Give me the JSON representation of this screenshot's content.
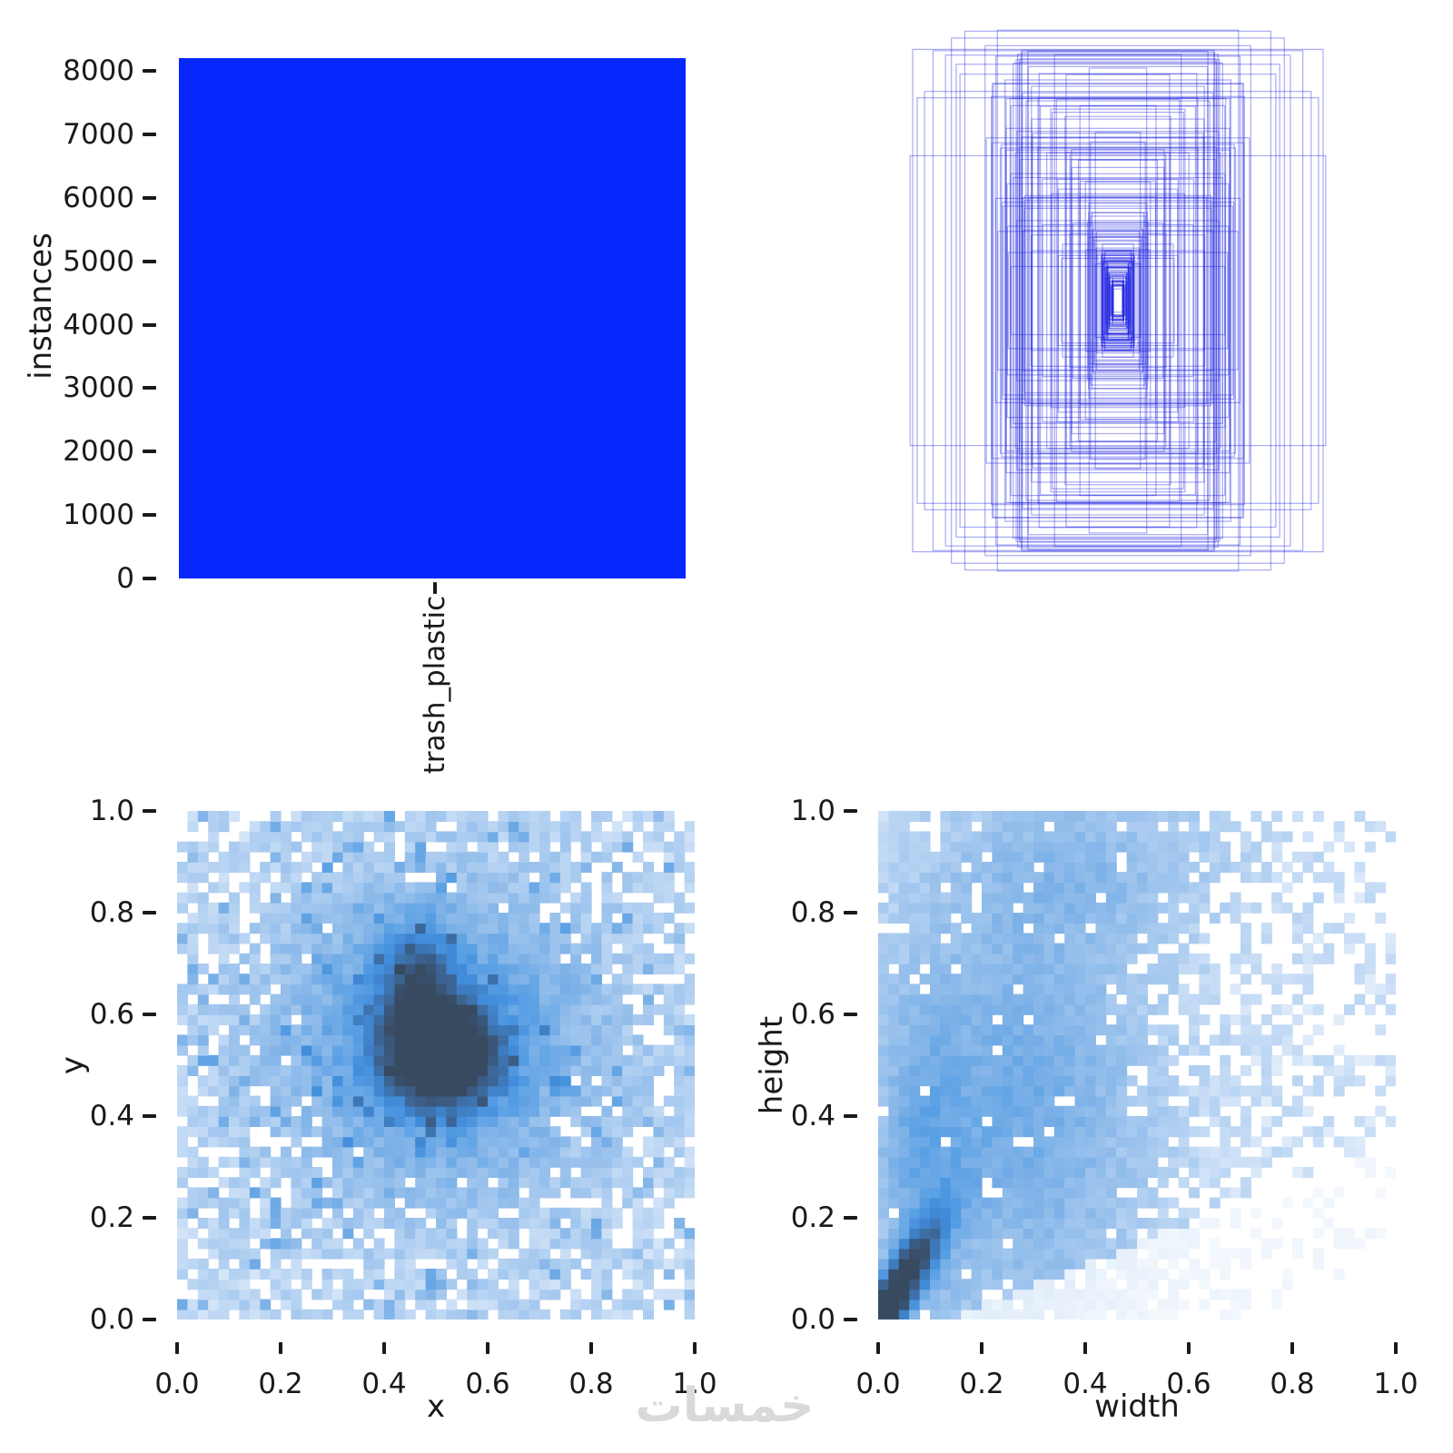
{
  "watermark": {
    "text": "خمسات",
    "color": "#d9d9d9"
  },
  "text_color": "#1a1a1a",
  "heat_colormap": [
    [
      0.0,
      "#ffffff"
    ],
    [
      0.1,
      "#c9def6"
    ],
    [
      0.22,
      "#a6c9ef"
    ],
    [
      0.35,
      "#82b4e8"
    ],
    [
      0.48,
      "#5aa0e4"
    ],
    [
      0.6,
      "#418cdb"
    ],
    [
      0.72,
      "#3d74b0"
    ],
    [
      0.84,
      "#3c5f8a"
    ],
    [
      1.0,
      "#374a60"
    ]
  ],
  "chart_data": [
    {
      "type": "bar",
      "panel": "class-instances",
      "title": "",
      "xlabel": "",
      "ylabel": "instances",
      "categories": [
        "trash_plastic"
      ],
      "values": [
        8200
      ],
      "ylim": [
        0,
        8540
      ],
      "yticks": [
        {
          "label": "0",
          "v": 0
        },
        {
          "label": "1000",
          "v": 1000
        },
        {
          "label": "2000",
          "v": 2000
        },
        {
          "label": "3000",
          "v": 3000
        },
        {
          "label": "4000",
          "v": 4000
        },
        {
          "label": "5000",
          "v": 5000
        },
        {
          "label": "6000",
          "v": 6000
        },
        {
          "label": "7000",
          "v": 7000
        },
        {
          "label": "8000",
          "v": 8000
        }
      ],
      "bar_color": "#0628ff",
      "grid": false,
      "legend": "none"
    },
    {
      "type": "bounding-box-overlay",
      "panel": "boxes",
      "description": "All dataset bounding boxes drawn as outlines, re-centered at (0.5, 0.5); many small boxes nest in the middle, a few span the whole field",
      "center": [
        0.5,
        0.5
      ],
      "n_rendered": 170,
      "seed": 7,
      "stroke": "#1a1fe0",
      "opacity": 0.38,
      "stroke_width": 1.2,
      "size_mix": {
        "small_frac": 0.52,
        "small_scale": 0.07,
        "mid_frac": 0.34,
        "mid_w": [
          0.1,
          0.6
        ],
        "mid_h": [
          0.12,
          0.92
        ],
        "large_w": [
          0.45,
          1.0
        ],
        "large_h": [
          0.5,
          1.0
        ]
      }
    },
    {
      "type": "heatmap",
      "panel": "xy-position",
      "xlabel": "x",
      "ylabel": "y",
      "xlim": [
        0,
        1
      ],
      "ylim": [
        0,
        1
      ],
      "bins": [
        50,
        50
      ],
      "xticks": [
        {
          "label": "0.0",
          "v": 0.0
        },
        {
          "label": "0.2",
          "v": 0.2
        },
        {
          "label": "0.4",
          "v": 0.4
        },
        {
          "label": "0.6",
          "v": 0.6
        },
        {
          "label": "0.8",
          "v": 0.8
        },
        {
          "label": "1.0",
          "v": 1.0
        }
      ],
      "yticks": [
        {
          "label": "0.0",
          "v": 0.0
        },
        {
          "label": "0.2",
          "v": 0.2
        },
        {
          "label": "0.4",
          "v": 0.4
        },
        {
          "label": "0.6",
          "v": 0.6
        },
        {
          "label": "0.8",
          "v": 0.8
        },
        {
          "label": "1.0",
          "v": 1.0
        }
      ],
      "peak": {
        "x": 0.51,
        "y": 0.52
      },
      "description": "2D histogram of box centers: near-uniform light-blue scatter over [0,1]^2 with a dark dense cluster at (0.51,0.52) and a secondary lobe toward (0.47,0.66)",
      "seed": 11,
      "density": {
        "base_min": 0.07,
        "base_rand": 0.15,
        "gaussians": [
          {
            "cx": 0.51,
            "cy": 0.52,
            "sx": 0.07,
            "sy": 0.065,
            "amp": 1.05
          },
          {
            "cx": 0.465,
            "cy": 0.655,
            "sx": 0.05,
            "sy": 0.08,
            "amp": 0.5
          },
          {
            "cx": 0.5,
            "cy": 0.55,
            "sx": 0.21,
            "sy": 0.2,
            "amp": 0.4
          }
        ],
        "bright_prob": 0.07,
        "bright_boost": 0.2,
        "zero_thresh": 0.26,
        "zero_prob": 0.24,
        "zero_edge_gain": 0.35
      },
      "grid": false
    },
    {
      "type": "heatmap",
      "panel": "width-height",
      "xlabel": "width",
      "ylabel": "height",
      "xlim": [
        0,
        1
      ],
      "ylim": [
        0,
        1
      ],
      "bins": [
        50,
        50
      ],
      "xticks": [
        {
          "label": "0.0",
          "v": 0.0
        },
        {
          "label": "0.2",
          "v": 0.2
        },
        {
          "label": "0.4",
          "v": 0.4
        },
        {
          "label": "0.6",
          "v": 0.6
        },
        {
          "label": "0.8",
          "v": 0.8
        },
        {
          "label": "1.0",
          "v": 1.0
        }
      ],
      "yticks": [
        {
          "label": "0.0",
          "v": 0.0
        },
        {
          "label": "0.2",
          "v": 0.2
        },
        {
          "label": "0.4",
          "v": 0.4
        },
        {
          "label": "0.6",
          "v": 0.6
        },
        {
          "label": "0.8",
          "v": 0.8
        },
        {
          "label": "1.0",
          "v": 1.0
        }
      ],
      "peak": {
        "x": 0.05,
        "y": 0.07
      },
      "description": "2D histogram of box sizes: very dense dark diagonal ridge near the origin (height ≈ 1.6 × width, w<0.12), broad light-blue cloud for mid widths up to full height, sparse isolated cells toward width 1.0",
      "seed": 23,
      "density": {
        "base_min": 0.05,
        "base_rand": 0.1,
        "gaussians": [
          {
            "cx": 0.28,
            "cy": 0.42,
            "sx": 0.17,
            "sy": 0.3,
            "amp": 0.3
          },
          {
            "cx": 0.4,
            "cy": 0.9,
            "sx": 0.2,
            "sy": 0.12,
            "amp": 0.16
          },
          {
            "cx": 0.08,
            "cy": 0.3,
            "sx": 0.06,
            "sy": 0.25,
            "amp": 0.2
          }
        ],
        "ridge": {
          "amp": 1.25,
          "k": 1.6,
          "s": 0.05,
          "sx": 0.1,
          "sy": 0.16
        },
        "bright_prob": 0.0,
        "bright_boost": 0.0,
        "zero_thresh": 0.2,
        "zero_prob": 0.18,
        "zero_right_gain": 0.85,
        "hole_prob": 0.05
      },
      "grid": false
    }
  ]
}
